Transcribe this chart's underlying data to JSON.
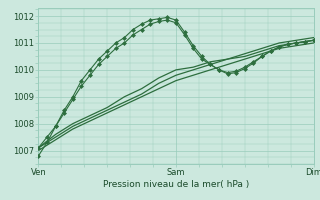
{
  "bg_color": "#cce8de",
  "grid_color": "#99ccbb",
  "line_color": "#2d6e3e",
  "ylim": [
    1006.5,
    1012.3
  ],
  "xlim": [
    0,
    96
  ],
  "xtick_labels": [
    "Ven",
    "Sam",
    "Dim"
  ],
  "xtick_positions": [
    0,
    48,
    96
  ],
  "ytick_values": [
    1007,
    1008,
    1009,
    1010,
    1011,
    1012
  ],
  "xlabel": "Pression niveau de la mer( hPa )",
  "series": [
    {
      "x": [
        0,
        6,
        12,
        18,
        24,
        30,
        36,
        42,
        48,
        54,
        60,
        66,
        72,
        78,
        84,
        90,
        96
      ],
      "y": [
        1007.0,
        1007.4,
        1007.8,
        1008.1,
        1008.4,
        1008.7,
        1009.0,
        1009.3,
        1009.6,
        1009.8,
        1010.0,
        1010.2,
        1010.4,
        1010.6,
        1010.8,
        1010.9,
        1011.0
      ],
      "style": "solid"
    },
    {
      "x": [
        0,
        6,
        12,
        18,
        24,
        30,
        36,
        42,
        48,
        54,
        60,
        66,
        72,
        78,
        84,
        90,
        96
      ],
      "y": [
        1007.1,
        1007.5,
        1007.9,
        1008.2,
        1008.5,
        1008.8,
        1009.1,
        1009.5,
        1009.8,
        1010.0,
        1010.2,
        1010.4,
        1010.5,
        1010.7,
        1010.9,
        1011.0,
        1011.1
      ],
      "style": "solid"
    },
    {
      "x": [
        0,
        6,
        12,
        18,
        24,
        30,
        36,
        42,
        48,
        54,
        60,
        66,
        72,
        78,
        84,
        90,
        96
      ],
      "y": [
        1007.1,
        1007.6,
        1008.0,
        1008.3,
        1008.6,
        1009.0,
        1009.3,
        1009.7,
        1010.0,
        1010.1,
        1010.3,
        1010.4,
        1010.6,
        1010.8,
        1011.0,
        1011.1,
        1011.2
      ],
      "style": "solid"
    },
    {
      "x": [
        0,
        3,
        6,
        9,
        12,
        15,
        18,
        21,
        24,
        27,
        30,
        33,
        36,
        39,
        42,
        45,
        48,
        51,
        54,
        57,
        60,
        63,
        66,
        69,
        72,
        75,
        78,
        81,
        84,
        87,
        90,
        93,
        96
      ],
      "y": [
        1007.1,
        1007.5,
        1007.9,
        1008.4,
        1008.9,
        1009.4,
        1009.8,
        1010.2,
        1010.5,
        1010.8,
        1011.0,
        1011.3,
        1011.5,
        1011.7,
        1011.8,
        1011.85,
        1011.75,
        1011.3,
        1010.8,
        1010.4,
        1010.2,
        1010.0,
        1009.9,
        1009.95,
        1010.1,
        1010.3,
        1010.5,
        1010.7,
        1010.85,
        1010.95,
        1011.0,
        1011.05,
        1011.1
      ],
      "style": "markers"
    },
    {
      "x": [
        0,
        3,
        6,
        9,
        12,
        15,
        18,
        21,
        24,
        27,
        30,
        33,
        36,
        39,
        42,
        45,
        48,
        51,
        54,
        57,
        60,
        63,
        66,
        69,
        72,
        75,
        78,
        81,
        84,
        87,
        90,
        93,
        96
      ],
      "y": [
        1006.8,
        1007.3,
        1007.9,
        1008.5,
        1009.0,
        1009.6,
        1010.0,
        1010.4,
        1010.7,
        1011.0,
        1011.2,
        1011.5,
        1011.7,
        1011.85,
        1011.9,
        1011.95,
        1011.85,
        1011.4,
        1010.9,
        1010.5,
        1010.2,
        1010.0,
        1009.85,
        1009.9,
        1010.05,
        1010.25,
        1010.5,
        1010.7,
        1010.85,
        1010.95,
        1011.0,
        1011.05,
        1011.1
      ],
      "style": "markers"
    }
  ]
}
